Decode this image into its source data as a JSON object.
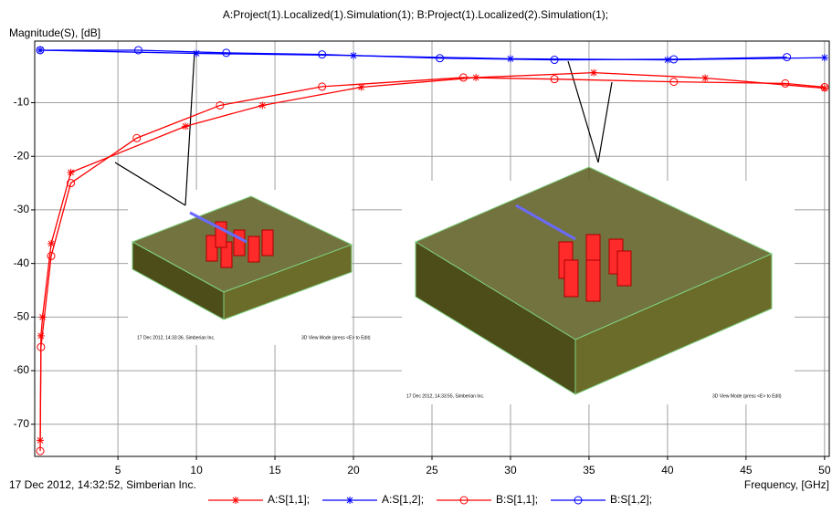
{
  "chart_data": {
    "type": "line",
    "title": "A:Project(1).Localized(1).Simulation(1); B:Project(1).Localized(2).Simulation(1);",
    "y_label": "Magnitude(S), [dB]",
    "x_label": "Frequency, [GHz]",
    "footer": "17 Dec 2012, 14:32:52, Simberian Inc.",
    "annotations": [
      "17 Dec 2012, 14:33:36, Simberian Inc.",
      "3D View Mode (press <E> to Edit)",
      "17 Dec 2012, 14:33:55, Simberian Inc.",
      "3D View Mode (press <E> to Edit)"
    ],
    "xlim": [
      -0.3,
      50.3
    ],
    "ylim": [
      -76,
      1.5
    ],
    "xticks": [
      5,
      10,
      15,
      20,
      25,
      30,
      35,
      40,
      45,
      50
    ],
    "yticks": [
      -10,
      -20,
      -30,
      -40,
      -50,
      -60,
      -70
    ],
    "grid": true,
    "series": [
      {
        "name": "A:S[1,1];",
        "color": "#ff0000",
        "marker": "star",
        "x": [
          0.05,
          0.1,
          0.2,
          0.75,
          2,
          9.3,
          14.2,
          20.5,
          27.8,
          35.3,
          42.4,
          50
        ],
        "values": [
          -73,
          -53.5,
          -50,
          -36.3,
          -23,
          -14.4,
          -10.5,
          -7.1,
          -5.3,
          -4.4,
          -5.4,
          -7.3
        ]
      },
      {
        "name": "A:S[1,2];",
        "color": "#0000ff",
        "marker": "star",
        "x": [
          0.05,
          10,
          20,
          30,
          40,
          50
        ],
        "values": [
          -0.2,
          -0.8,
          -1.2,
          -1.8,
          -2,
          -1.6
        ]
      },
      {
        "name": "B:S[1,1];",
        "color": "#ff0000",
        "marker": "circle",
        "x": [
          0.05,
          0.1,
          0.75,
          2,
          6.2,
          11.5,
          18,
          27,
          32.8,
          40.4,
          47.5,
          50
        ],
        "values": [
          -75,
          -55.6,
          -38.6,
          -25,
          -16.6,
          -10.5,
          -7,
          -5.3,
          -5.6,
          -6.1,
          -6.4,
          -7.1
        ]
      },
      {
        "name": "B:S[1,2];",
        "color": "#0000ff",
        "marker": "circle",
        "x": [
          0.05,
          6.3,
          11.9,
          18,
          25.5,
          32.8,
          40.4,
          47.6
        ],
        "values": [
          -0.2,
          -0.2,
          -0.7,
          -1,
          -1.7,
          -2,
          -1.9,
          -1.5
        ]
      }
    ]
  }
}
